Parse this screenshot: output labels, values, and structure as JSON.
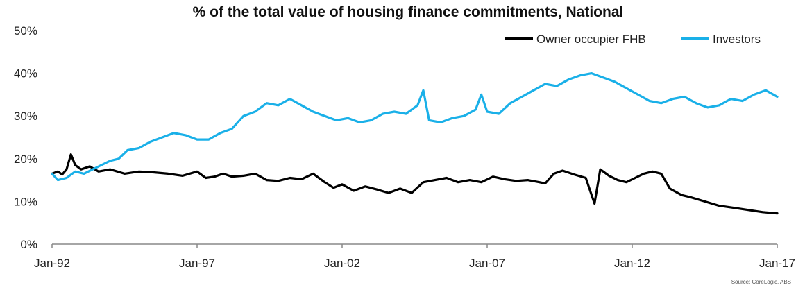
{
  "chart_data": {
    "type": "line",
    "title": "% of the total value of housing finance commitments, National",
    "xlabel": "",
    "ylabel": "",
    "ylim": [
      0,
      50
    ],
    "yticks": [
      "0%",
      "10%",
      "20%",
      "30%",
      "40%",
      "50%"
    ],
    "xticks": [
      "Jan-92",
      "Jan-97",
      "Jan-02",
      "Jan-07",
      "Jan-12",
      "Jan-17"
    ],
    "grid": false,
    "legend_position": "top-right",
    "source": "Source: CoreLogic, ABS",
    "colors": {
      "owner_fhb": "#000000",
      "investors": "#1ab0e8"
    },
    "series": [
      {
        "name": "Owner occupier FHB",
        "color": "#000000",
        "points": [
          [
            1992.0,
            16.5
          ],
          [
            1992.2,
            17.0
          ],
          [
            1992.35,
            16.3
          ],
          [
            1992.5,
            17.5
          ],
          [
            1992.65,
            21.0
          ],
          [
            1992.8,
            18.5
          ],
          [
            1993.0,
            17.5
          ],
          [
            1993.3,
            18.2
          ],
          [
            1993.6,
            17.0
          ],
          [
            1994.0,
            17.5
          ],
          [
            1994.5,
            16.5
          ],
          [
            1995.0,
            17.0
          ],
          [
            1995.5,
            16.8
          ],
          [
            1996.0,
            16.5
          ],
          [
            1996.5,
            16.0
          ],
          [
            1997.0,
            17.0
          ],
          [
            1997.3,
            15.5
          ],
          [
            1997.6,
            15.8
          ],
          [
            1997.9,
            16.5
          ],
          [
            1998.2,
            15.8
          ],
          [
            1998.6,
            16.0
          ],
          [
            1999.0,
            16.5
          ],
          [
            1999.4,
            15.0
          ],
          [
            1999.8,
            14.8
          ],
          [
            2000.2,
            15.5
          ],
          [
            2000.6,
            15.2
          ],
          [
            2001.0,
            16.5
          ],
          [
            2001.4,
            14.5
          ],
          [
            2001.7,
            13.2
          ],
          [
            2002.0,
            14.0
          ],
          [
            2002.4,
            12.5
          ],
          [
            2002.8,
            13.5
          ],
          [
            2003.2,
            12.8
          ],
          [
            2003.6,
            12.0
          ],
          [
            2004.0,
            13.0
          ],
          [
            2004.4,
            12.0
          ],
          [
            2004.8,
            14.5
          ],
          [
            2005.2,
            15.0
          ],
          [
            2005.6,
            15.5
          ],
          [
            2006.0,
            14.5
          ],
          [
            2006.4,
            15.0
          ],
          [
            2006.8,
            14.5
          ],
          [
            2007.2,
            15.8
          ],
          [
            2007.6,
            15.2
          ],
          [
            2008.0,
            14.8
          ],
          [
            2008.4,
            15.0
          ],
          [
            2008.8,
            14.5
          ],
          [
            2009.0,
            14.2
          ],
          [
            2009.3,
            16.5
          ],
          [
            2009.6,
            17.2
          ],
          [
            2010.0,
            16.3
          ],
          [
            2010.4,
            15.5
          ],
          [
            2010.7,
            9.5
          ],
          [
            2010.9,
            17.5
          ],
          [
            2011.2,
            16.0
          ],
          [
            2011.5,
            15.0
          ],
          [
            2011.8,
            14.5
          ],
          [
            2012.1,
            15.5
          ],
          [
            2012.4,
            16.5
          ],
          [
            2012.7,
            17.0
          ],
          [
            2013.0,
            16.5
          ],
          [
            2013.3,
            13.0
          ],
          [
            2013.7,
            11.5
          ],
          [
            2014.0,
            11.0
          ],
          [
            2014.5,
            10.0
          ],
          [
            2015.0,
            9.0
          ],
          [
            2015.5,
            8.5
          ],
          [
            2016.0,
            8.0
          ],
          [
            2016.5,
            7.5
          ],
          [
            2017.0,
            7.2
          ]
        ]
      },
      {
        "name": "Investors",
        "color": "#1ab0e8",
        "points": [
          [
            1992.0,
            16.5
          ],
          [
            1992.2,
            15.0
          ],
          [
            1992.5,
            15.5
          ],
          [
            1992.8,
            17.0
          ],
          [
            1993.1,
            16.5
          ],
          [
            1993.4,
            17.5
          ],
          [
            1993.7,
            18.5
          ],
          [
            1994.0,
            19.5
          ],
          [
            1994.3,
            20.0
          ],
          [
            1994.6,
            22.0
          ],
          [
            1995.0,
            22.5
          ],
          [
            1995.4,
            24.0
          ],
          [
            1995.8,
            25.0
          ],
          [
            1996.2,
            26.0
          ],
          [
            1996.6,
            25.5
          ],
          [
            1997.0,
            24.5
          ],
          [
            1997.4,
            24.5
          ],
          [
            1997.8,
            26.0
          ],
          [
            1998.2,
            27.0
          ],
          [
            1998.6,
            30.0
          ],
          [
            1999.0,
            31.0
          ],
          [
            1999.4,
            33.0
          ],
          [
            1999.8,
            32.5
          ],
          [
            2000.2,
            34.0
          ],
          [
            2000.6,
            32.5
          ],
          [
            2001.0,
            31.0
          ],
          [
            2001.4,
            30.0
          ],
          [
            2001.8,
            29.0
          ],
          [
            2002.2,
            29.5
          ],
          [
            2002.6,
            28.5
          ],
          [
            2003.0,
            29.0
          ],
          [
            2003.4,
            30.5
          ],
          [
            2003.8,
            31.0
          ],
          [
            2004.2,
            30.5
          ],
          [
            2004.6,
            32.5
          ],
          [
            2004.8,
            36.0
          ],
          [
            2005.0,
            29.0
          ],
          [
            2005.4,
            28.5
          ],
          [
            2005.8,
            29.5
          ],
          [
            2006.2,
            30.0
          ],
          [
            2006.6,
            31.5
          ],
          [
            2006.8,
            35.0
          ],
          [
            2007.0,
            31.0
          ],
          [
            2007.4,
            30.5
          ],
          [
            2007.8,
            33.0
          ],
          [
            2008.2,
            34.5
          ],
          [
            2008.6,
            36.0
          ],
          [
            2009.0,
            37.5
          ],
          [
            2009.4,
            37.0
          ],
          [
            2009.8,
            38.5
          ],
          [
            2010.2,
            39.5
          ],
          [
            2010.6,
            40.0
          ],
          [
            2011.0,
            39.0
          ],
          [
            2011.4,
            38.0
          ],
          [
            2011.8,
            36.5
          ],
          [
            2012.2,
            35.0
          ],
          [
            2012.6,
            33.5
          ],
          [
            2013.0,
            33.0
          ],
          [
            2013.4,
            34.0
          ],
          [
            2013.8,
            34.5
          ],
          [
            2014.2,
            33.0
          ],
          [
            2014.6,
            32.0
          ],
          [
            2015.0,
            32.5
          ],
          [
            2015.4,
            34.0
          ],
          [
            2015.8,
            33.5
          ],
          [
            2016.2,
            35.0
          ],
          [
            2016.6,
            36.0
          ],
          [
            2017.0,
            34.5
          ]
        ]
      }
    ]
  }
}
